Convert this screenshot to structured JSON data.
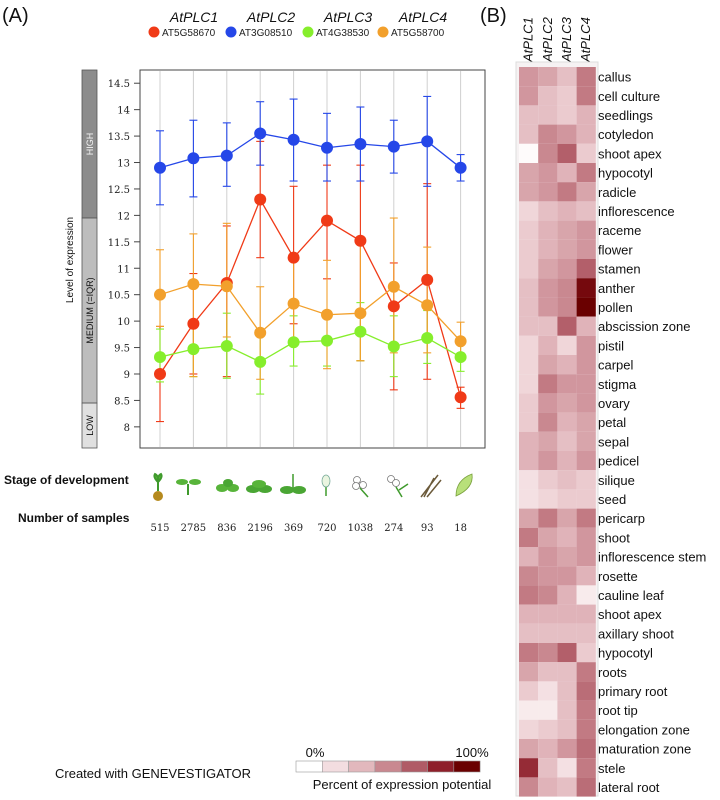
{
  "panels": {
    "a_label": "(A)",
    "b_label": "(B)"
  },
  "chart_data": [
    {
      "type": "line",
      "panel": "A",
      "legend": [
        {
          "name": "AtPLC1",
          "locus": "AT5G58670",
          "color": "#f03a17"
        },
        {
          "name": "AtPLC2",
          "locus": "AT3G08510",
          "color": "#2547e8"
        },
        {
          "name": "AtPLC3",
          "locus": "AT4G38530",
          "color": "#86ee2c"
        },
        {
          "name": "AtPLC4",
          "locus": "AT5G58700",
          "color": "#f2a02c"
        }
      ],
      "ylabel": "Level of expression",
      "ylim": [
        7.6,
        14.75
      ],
      "yticks": [
        "8",
        "8.5",
        "9",
        "9.5",
        "10",
        "10.5",
        "11",
        "11.5",
        "12",
        "12.5",
        "13",
        "13.5",
        "14",
        "14.5"
      ],
      "bands": [
        {
          "label": "HIGH",
          "from": 11.95,
          "to": 14.75,
          "color": "#8c8c8c"
        },
        {
          "label": "MEDIUM (=IQR)",
          "from": 8.45,
          "to": 11.95,
          "color": "#bdbdbd"
        },
        {
          "label": "LOW",
          "from": 7.6,
          "to": 8.45,
          "color": "#e0e0e0"
        }
      ],
      "stage_label": "Stage of development",
      "samples_label": "Number of samples",
      "samples": [
        "515",
        "2785",
        "836",
        "2196",
        "369",
        "720",
        "1038",
        "274",
        "93",
        "18"
      ],
      "series": [
        {
          "name": "AtPLC1",
          "values": [
            9.0,
            9.95,
            10.72,
            12.3,
            11.2,
            11.9,
            11.52,
            10.28,
            10.78,
            8.56
          ],
          "lower": [
            8.1,
            9.0,
            8.95,
            11.2,
            9.95,
            10.8,
            9.25,
            8.7,
            8.9,
            8.35
          ],
          "upper": [
            9.9,
            10.9,
            11.8,
            13.4,
            12.55,
            12.95,
            12.95,
            11.1,
            12.6,
            8.75
          ]
        },
        {
          "name": "AtPLC2",
          "values": [
            12.9,
            13.08,
            13.13,
            13.55,
            13.43,
            13.28,
            13.35,
            13.3,
            13.4,
            12.9
          ],
          "lower": [
            12.2,
            12.35,
            12.55,
            12.95,
            12.65,
            12.65,
            12.65,
            12.8,
            12.55,
            12.65
          ],
          "upper": [
            13.6,
            13.8,
            13.75,
            14.15,
            14.2,
            13.93,
            14.05,
            13.8,
            14.25,
            13.15
          ]
        },
        {
          "name": "AtPLC3",
          "values": [
            9.32,
            9.47,
            9.53,
            9.23,
            9.6,
            9.63,
            9.8,
            9.52,
            9.68,
            9.32
          ],
          "lower": [
            8.85,
            8.95,
            8.92,
            8.62,
            9.15,
            9.15,
            9.25,
            8.95,
            9.2,
            9.05
          ],
          "upper": [
            9.85,
            10.0,
            10.15,
            9.85,
            10.1,
            10.15,
            10.35,
            10.1,
            10.2,
            9.6
          ]
        },
        {
          "name": "AtPLC4",
          "values": [
            10.5,
            10.7,
            10.66,
            9.78,
            10.33,
            10.12,
            10.15,
            10.65,
            10.3,
            9.62
          ],
          "lower": [
            9.9,
            8.95,
            9.7,
            8.9,
            9.55,
            9.1,
            9.25,
            9.4,
            9.4,
            9.25
          ],
          "upper": [
            11.35,
            11.65,
            11.85,
            10.65,
            11.15,
            11.15,
            11.5,
            11.95,
            11.4,
            9.98
          ]
        }
      ]
    },
    {
      "type": "heatmap",
      "panel": "B",
      "columns": [
        "AtPLC1",
        "AtPLC2",
        "AtPLC3",
        "AtPLC4"
      ],
      "rows": [
        "callus",
        "cell culture",
        "seedlings",
        "cotyledon",
        "shoot apex",
        "hypocotyl",
        "radicle",
        "inflorescence",
        "raceme",
        "flower",
        "stamen",
        "anther",
        "pollen",
        "abscission zone",
        "pistil",
        "carpel",
        "stigma",
        "ovary",
        "petal",
        "sepal",
        "pedicel",
        "silique",
        "seed",
        "pericarp",
        "shoot",
        "inflorescence stem",
        "rosette",
        "cauline leaf",
        "shoot apex",
        "axillary shoot",
        "hypocotyl",
        "roots",
        "primary root",
        "root tip",
        "elongation zone",
        "maturation zone",
        "stele",
        "lateral root"
      ],
      "values": [
        [
          0.45,
          0.4,
          0.3,
          0.55
        ],
        [
          0.45,
          0.3,
          0.25,
          0.55
        ],
        [
          0.3,
          0.3,
          0.25,
          0.35
        ],
        [
          0.3,
          0.5,
          0.45,
          0.35
        ],
        [
          0.02,
          0.5,
          0.65,
          0.25
        ],
        [
          0.4,
          0.45,
          0.35,
          0.55
        ],
        [
          0.4,
          0.45,
          0.55,
          0.4
        ],
        [
          0.2,
          0.3,
          0.35,
          0.3
        ],
        [
          0.25,
          0.35,
          0.4,
          0.45
        ],
        [
          0.25,
          0.35,
          0.4,
          0.45
        ],
        [
          0.25,
          0.4,
          0.45,
          0.65
        ],
        [
          0.3,
          0.45,
          0.5,
          0.95
        ],
        [
          0.3,
          0.45,
          0.5,
          1.0
        ],
        [
          0.3,
          0.3,
          0.65,
          0.35
        ],
        [
          0.2,
          0.35,
          0.2,
          0.45
        ],
        [
          0.2,
          0.4,
          0.35,
          0.45
        ],
        [
          0.2,
          0.55,
          0.45,
          0.45
        ],
        [
          0.25,
          0.45,
          0.4,
          0.45
        ],
        [
          0.25,
          0.5,
          0.35,
          0.4
        ],
        [
          0.35,
          0.4,
          0.3,
          0.4
        ],
        [
          0.35,
          0.45,
          0.35,
          0.45
        ],
        [
          0.15,
          0.25,
          0.3,
          0.25
        ],
        [
          0.15,
          0.2,
          0.25,
          0.25
        ],
        [
          0.4,
          0.55,
          0.4,
          0.55
        ],
        [
          0.55,
          0.4,
          0.35,
          0.45
        ],
        [
          0.35,
          0.45,
          0.4,
          0.45
        ],
        [
          0.5,
          0.45,
          0.45,
          0.35
        ],
        [
          0.55,
          0.5,
          0.35,
          0.1
        ],
        [
          0.35,
          0.35,
          0.35,
          0.35
        ],
        [
          0.3,
          0.3,
          0.3,
          0.3
        ],
        [
          0.55,
          0.5,
          0.65,
          0.25
        ],
        [
          0.4,
          0.3,
          0.3,
          0.55
        ],
        [
          0.25,
          0.15,
          0.3,
          0.6
        ],
        [
          0.1,
          0.1,
          0.3,
          0.55
        ],
        [
          0.2,
          0.25,
          0.3,
          0.55
        ],
        [
          0.4,
          0.35,
          0.45,
          0.6
        ],
        [
          0.8,
          0.3,
          0.15,
          0.55
        ],
        [
          0.5,
          0.35,
          0.3,
          0.6
        ]
      ],
      "scale": {
        "min_label": "0%",
        "max_label": "100%",
        "title": "Percent of expression potential",
        "colors": [
          "#ffffff",
          "#f3dde0",
          "#e2b8bd",
          "#c98890",
          "#b05b66",
          "#8e1f2a",
          "#6a0000"
        ]
      }
    }
  ],
  "credit": "Created with GENEVESTIGATOR"
}
